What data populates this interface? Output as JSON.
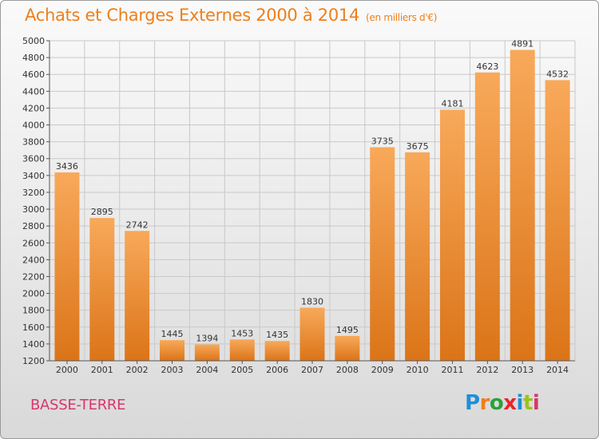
{
  "header": {
    "title": "Achats et Charges Externes 2000 à 2014",
    "unit": "(en milliers d'€)"
  },
  "region": "BASSE-TERRE",
  "logo": {
    "text": "Proxiti",
    "letter_colors": [
      "#1f8fd8",
      "#ee7f1c",
      "#2aa23a",
      "#e6262c",
      "#1f8fd8",
      "#9bc31c",
      "#d8366c"
    ]
  },
  "colors": {
    "bar_light": "#f8a95a",
    "bar_dark": "#db7418",
    "title": "#ee7f1c",
    "region": "#d8366c"
  },
  "chart_data": {
    "type": "bar",
    "categories": [
      "2000",
      "2001",
      "2002",
      "2003",
      "2004",
      "2005",
      "2006",
      "2007",
      "2008",
      "2009",
      "2010",
      "2011",
      "2012",
      "2013",
      "2014"
    ],
    "values": [
      3436,
      2895,
      2742,
      1445,
      1394,
      1453,
      1435,
      1830,
      1495,
      3735,
      3675,
      4181,
      4623,
      4891,
      4532
    ],
    "ylim": [
      1200,
      5000
    ],
    "yticks": [
      1200,
      1400,
      1600,
      1800,
      2000,
      2200,
      2400,
      2600,
      2800,
      3000,
      3200,
      3400,
      3600,
      3800,
      4000,
      4200,
      4400,
      4600,
      4800,
      5000
    ],
    "grid": true
  }
}
